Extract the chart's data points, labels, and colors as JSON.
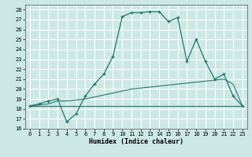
{
  "xlabel": "Humidex (Indice chaleur)",
  "bg_color": "#cce8e4",
  "grid_color": "#ffffff",
  "line_color": "#1a7a6e",
  "xlim": [
    -0.5,
    23.5
  ],
  "ylim": [
    16,
    28.5
  ],
  "xticks": [
    0,
    1,
    2,
    3,
    4,
    5,
    6,
    7,
    8,
    9,
    10,
    11,
    12,
    13,
    14,
    15,
    16,
    17,
    18,
    19,
    20,
    21,
    22,
    23
  ],
  "yticks": [
    16,
    17,
    18,
    19,
    20,
    21,
    22,
    23,
    24,
    25,
    26,
    27,
    28
  ],
  "series1_x": [
    0,
    1,
    2,
    3,
    4,
    5,
    6,
    7,
    8,
    9,
    10,
    11,
    12,
    13,
    14,
    15,
    16,
    17,
    18,
    19,
    20,
    21,
    22,
    23
  ],
  "series1_y": [
    18.3,
    18.5,
    18.8,
    19.0,
    16.7,
    17.5,
    19.3,
    20.5,
    21.5,
    23.3,
    27.3,
    27.7,
    27.7,
    27.8,
    27.8,
    26.8,
    27.2,
    22.8,
    25.0,
    22.8,
    21.0,
    21.5,
    19.3,
    18.3
  ],
  "series2_x": [
    0,
    1,
    2,
    3,
    4,
    5,
    6,
    7,
    8,
    9,
    10,
    11,
    12,
    13,
    14,
    15,
    16,
    17,
    18,
    19,
    20,
    21,
    22,
    23
  ],
  "series2_y": [
    18.3,
    18.4,
    18.5,
    18.8,
    18.8,
    18.9,
    19.0,
    19.2,
    19.4,
    19.6,
    19.8,
    20.0,
    20.1,
    20.2,
    20.3,
    20.4,
    20.5,
    20.6,
    20.7,
    20.8,
    20.9,
    21.0,
    20.5,
    18.3
  ],
  "series3_x": [
    0,
    23
  ],
  "series3_y": [
    18.3,
    18.3
  ]
}
